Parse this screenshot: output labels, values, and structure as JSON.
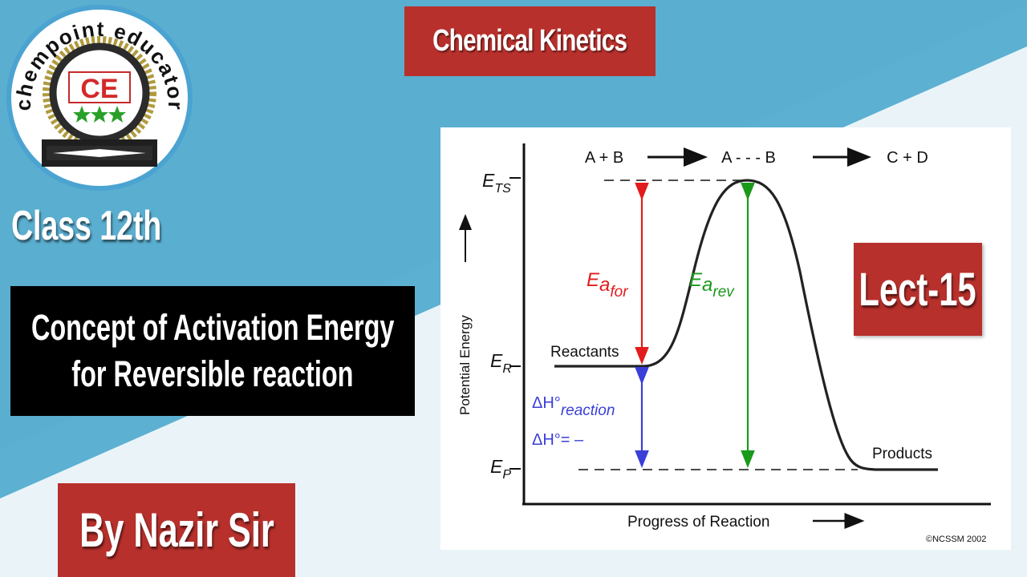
{
  "colors": {
    "accent_red": "#b8302c",
    "sky_blue": "#5cb0d2",
    "forward_arrow": "#e21c1c",
    "reverse_arrow": "#1a9a1a",
    "enthalpy_arrow": "#3a3fd8"
  },
  "logo": {
    "ring_text": "chempoint educator",
    "badge": "CE"
  },
  "header": {
    "title": "Chemical Kinetics"
  },
  "left": {
    "class_label": "Class 12th",
    "topic_line1": "Concept of Activation Energy",
    "topic_line2": "for Reversible reaction",
    "author": "By Nazir Sir"
  },
  "lecture": {
    "label": "Lect-15"
  },
  "diagram": {
    "reaction": {
      "reactants": "A + B",
      "transition": "A - - - B",
      "products": "C + D"
    },
    "levels": {
      "ts_main": "E",
      "ts_sub": "TS",
      "r_main": "E",
      "r_sub": "R",
      "p_main": "E",
      "p_sub": "P"
    },
    "labels": {
      "reactants": "Reactants",
      "products": "Products",
      "ea_main": "E",
      "ea_for_sub": "a",
      "ea_for_suffix": "for",
      "ea_rev_sub": "a",
      "ea_rev_suffix": "rev",
      "dh_symbol": "ΔH°",
      "dh_reaction": "reaction",
      "dh_sign": "ΔH°= –"
    },
    "y_axis": "Potential Energy",
    "x_axis": "Progress of Reaction",
    "credit": "©NCSSM 2002"
  }
}
